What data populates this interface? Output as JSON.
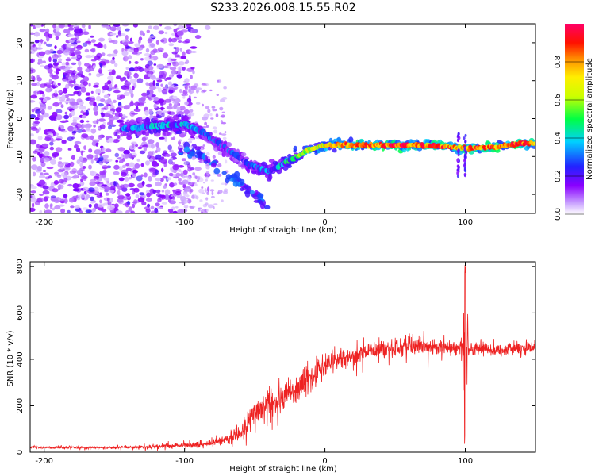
{
  "title": "S233.2026.008.15.55.R02",
  "colors": {
    "trace": "#ee2222",
    "frame": "#000000"
  },
  "chart_data": [
    {
      "type": "heatmap",
      "xlabel": "Height of straight line (km)",
      "ylabel": "Frequency (Hz)",
      "xlim": [
        -210,
        150
      ],
      "ylim": [
        -25,
        25
      ],
      "xticks": [
        -200,
        -100,
        0,
        100
      ],
      "yticks": [
        -20,
        -10,
        0,
        10,
        20
      ],
      "colorbar": {
        "label": "Normalized spectral amplitude",
        "range": [
          0.0,
          1.0
        ],
        "ticks": [
          0.0,
          0.2,
          0.4,
          0.6,
          0.8
        ],
        "tick_labels": [
          "0.0",
          "0.2",
          "0.4",
          "0.6",
          "0.8"
        ],
        "colormap": [
          "#ffffff",
          "#8a00ff",
          "#2222ff",
          "#00d0ff",
          "#00ff44",
          "#ffff00",
          "#ff8800",
          "#ff0000",
          "#ff0066"
        ]
      },
      "ridge": {
        "description": "dominant frequency track",
        "points": [
          [
            -140,
            -2.5
          ],
          [
            -120,
            -2
          ],
          [
            -100,
            -1.5
          ],
          [
            -85,
            -4
          ],
          [
            -70,
            -8
          ],
          [
            -55,
            -12
          ],
          [
            -40,
            -14
          ],
          [
            -30,
            -12
          ],
          [
            -20,
            -10
          ],
          [
            -10,
            -8
          ],
          [
            0,
            -7
          ],
          [
            20,
            -7
          ],
          [
            50,
            -7
          ],
          [
            80,
            -7.2
          ],
          [
            100,
            -7.8
          ],
          [
            120,
            -7.5
          ],
          [
            140,
            -6.5
          ],
          [
            150,
            -6.5
          ]
        ],
        "amplitudes": [
          0.35,
          0.45,
          0.4,
          0.35,
          0.3,
          0.3,
          0.4,
          0.45,
          0.6,
          0.7,
          0.75,
          0.9,
          0.95,
          0.9,
          0.85,
          0.9,
          0.95,
          0.9
        ]
      },
      "secondary_track": {
        "points": [
          [
            -105,
            -8
          ],
          [
            -90,
            -9
          ],
          [
            -75,
            -13
          ],
          [
            -60,
            -17
          ],
          [
            -50,
            -20
          ],
          [
            -40,
            -24
          ]
        ],
        "amplitude": 0.25
      }
    },
    {
      "type": "line",
      "xlabel": "Height of straight line (km)",
      "ylabel": "SNR (10 * v/v)",
      "xlim": [
        -210,
        150
      ],
      "ylim": [
        0,
        820
      ],
      "xticks": [
        -200,
        -100,
        0,
        100
      ],
      "yticks": [
        0,
        200,
        400,
        600,
        800
      ],
      "series": [
        {
          "name": "SNR",
          "color": "#ee2222",
          "envelope": {
            "x": [
              -210,
              -150,
              -120,
              -100,
              -80,
              -60,
              -50,
              -40,
              -30,
              -20,
              -10,
              0,
              10,
              20,
              30,
              40,
              50,
              60,
              70,
              80,
              90,
              100,
              110,
              120,
              130,
              140,
              150
            ],
            "mean": [
              20,
              20,
              25,
              30,
              40,
              80,
              160,
              220,
              230,
              280,
              320,
              370,
              400,
              410,
              430,
              440,
              450,
              460,
              460,
              450,
              450,
              440,
              450,
              440,
              445,
              450,
              455
            ],
            "noise": [
              8,
              10,
              15,
              20,
              25,
              60,
              100,
              110,
              110,
              100,
              90,
              70,
              70,
              60,
              60,
              60,
              60,
              70,
              60,
              50,
              50,
              50,
              45,
              45,
              45,
              45,
              45
            ]
          },
          "spike": {
            "x": 100,
            "y_max": 820,
            "y_min": 30
          }
        }
      ]
    }
  ]
}
